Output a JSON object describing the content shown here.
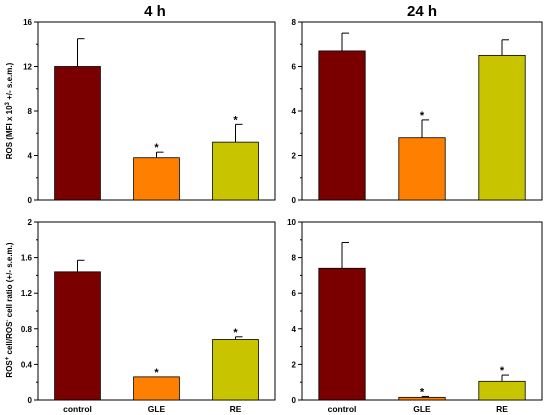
{
  "figure": {
    "col_titles": [
      "4 h",
      "24 h"
    ],
    "row_ylabels": [
      {
        "main": "ROS (MFI x 10",
        "sup": "3",
        "rest": " +/- s.e.m.)"
      },
      {
        "a": "ROS",
        "a_sup": "+",
        "b": " cell/ROS",
        "b_sup": "-",
        "c": " cell ratio (+/- s.e.m.)"
      }
    ]
  },
  "chart_data": [
    {
      "type": "bar",
      "title": "4 h",
      "categories": [
        "control",
        "GLE",
        "RE"
      ],
      "values": [
        12.0,
        3.8,
        5.2
      ],
      "errors": [
        2.5,
        0.5,
        1.6
      ],
      "significance": [
        "",
        "*",
        "*"
      ],
      "colors": [
        "#7a0000",
        "#ff8000",
        "#c8c400"
      ],
      "ylim": [
        0,
        16
      ],
      "yticks": [
        0,
        4,
        8,
        12,
        16
      ],
      "ytick_labels": [
        "0",
        "4",
        "8",
        "12",
        "16"
      ],
      "show_xlabels": false
    },
    {
      "type": "bar",
      "title": "24 h",
      "categories": [
        "control",
        "GLE",
        "RE"
      ],
      "values": [
        6.7,
        2.8,
        6.5
      ],
      "errors": [
        0.8,
        0.8,
        0.7
      ],
      "significance": [
        "",
        "*",
        ""
      ],
      "colors": [
        "#7a0000",
        "#ff8000",
        "#c8c400"
      ],
      "ylim": [
        0,
        8
      ],
      "yticks": [
        0,
        2,
        4,
        6,
        8
      ],
      "ytick_labels": [
        "0",
        "2",
        "4",
        "6",
        "8"
      ],
      "show_xlabels": false
    },
    {
      "type": "bar",
      "categories": [
        "control",
        "GLE",
        "RE"
      ],
      "values": [
        1.44,
        0.26,
        0.68
      ],
      "errors": [
        0.13,
        0.0,
        0.03
      ],
      "significance": [
        "",
        "*",
        "*"
      ],
      "colors": [
        "#7a0000",
        "#ff8000",
        "#c8c400"
      ],
      "ylim": [
        0,
        2
      ],
      "yticks": [
        0,
        0.4,
        0.8,
        1.2,
        1.6,
        2
      ],
      "ytick_labels": [
        "0",
        "0.4",
        "0.8",
        "1.2",
        "1.6",
        "2"
      ],
      "show_xlabels": true
    },
    {
      "type": "bar",
      "categories": [
        "control",
        "GLE",
        "RE"
      ],
      "values": [
        7.4,
        0.15,
        1.05
      ],
      "errors": [
        1.45,
        0.05,
        0.35
      ],
      "significance": [
        "",
        "*",
        "*"
      ],
      "colors": [
        "#7a0000",
        "#ff8000",
        "#c8c400"
      ],
      "ylim": [
        0,
        10
      ],
      "yticks": [
        0,
        2,
        4,
        6,
        8,
        10
      ],
      "ytick_labels": [
        "0",
        "2",
        "4",
        "6",
        "8",
        "10"
      ],
      "show_xlabels": true
    }
  ]
}
